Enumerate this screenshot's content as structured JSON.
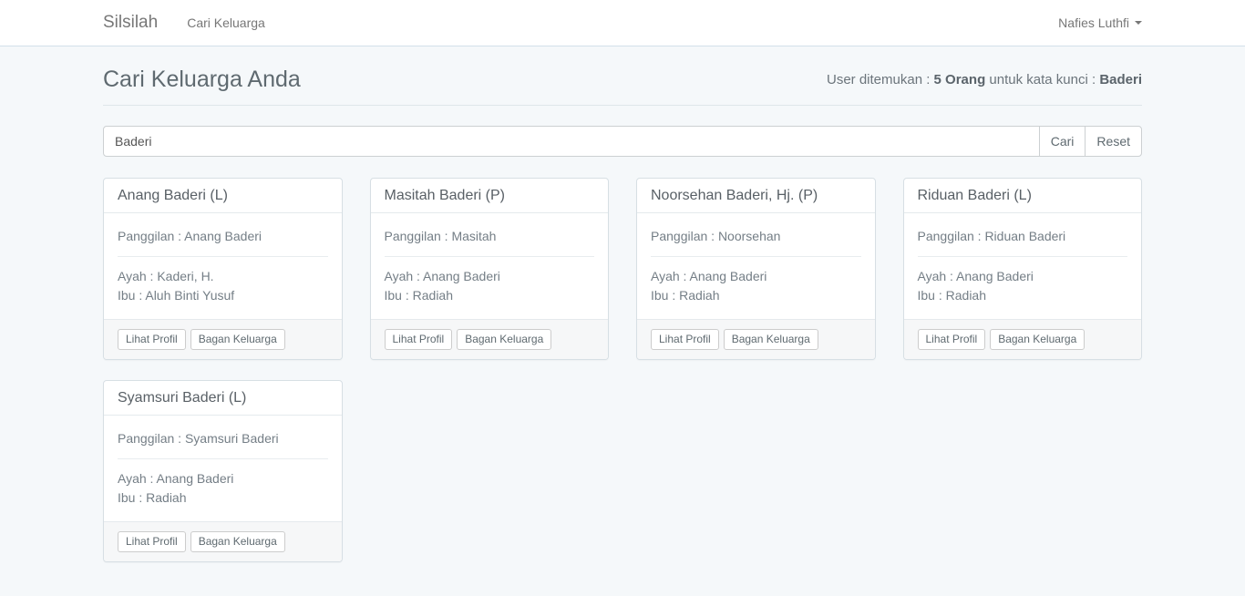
{
  "navbar": {
    "brand": "Silsilah",
    "nav_link": "Cari Keluarga",
    "user_menu": "Nafies Luthfi"
  },
  "page_header": {
    "title": "Cari Keluarga Anda",
    "result_prefix": "User ditemukan : ",
    "result_count": "5 Orang",
    "result_middle": " untuk kata kunci : ",
    "result_keyword": "Baderi"
  },
  "search": {
    "value": "Baderi",
    "cari": "Cari",
    "reset": "Reset"
  },
  "actions": {
    "profile": "Lihat Profil",
    "chart": "Bagan Keluarga"
  },
  "cards": [
    {
      "name": "Anang Baderi (L)",
      "panggilan": "Panggilan : Anang Baderi",
      "ayah": "Ayah : Kaderi, H.",
      "ibu": "Ibu : Aluh Binti Yusuf"
    },
    {
      "name": "Masitah Baderi (P)",
      "panggilan": "Panggilan : Masitah",
      "ayah": "Ayah : Anang Baderi",
      "ibu": "Ibu : Radiah"
    },
    {
      "name": "Noorsehan Baderi, Hj. (P)",
      "panggilan": "Panggilan : Noorsehan",
      "ayah": "Ayah : Anang Baderi",
      "ibu": "Ibu : Radiah"
    },
    {
      "name": "Riduan Baderi (L)",
      "panggilan": "Panggilan : Riduan Baderi",
      "ayah": "Ayah : Anang Baderi",
      "ibu": "Ibu : Radiah"
    },
    {
      "name": "Syamsuri Baderi (L)",
      "panggilan": "Panggilan : Syamsuri Baderi",
      "ayah": "Ayah : Anang Baderi",
      "ibu": "Ibu : Radiah"
    }
  ],
  "colors": {
    "page_background": "#f5f8fa",
    "navbar_background": "#ffffff",
    "navbar_border": "#d3e0e9"
  }
}
